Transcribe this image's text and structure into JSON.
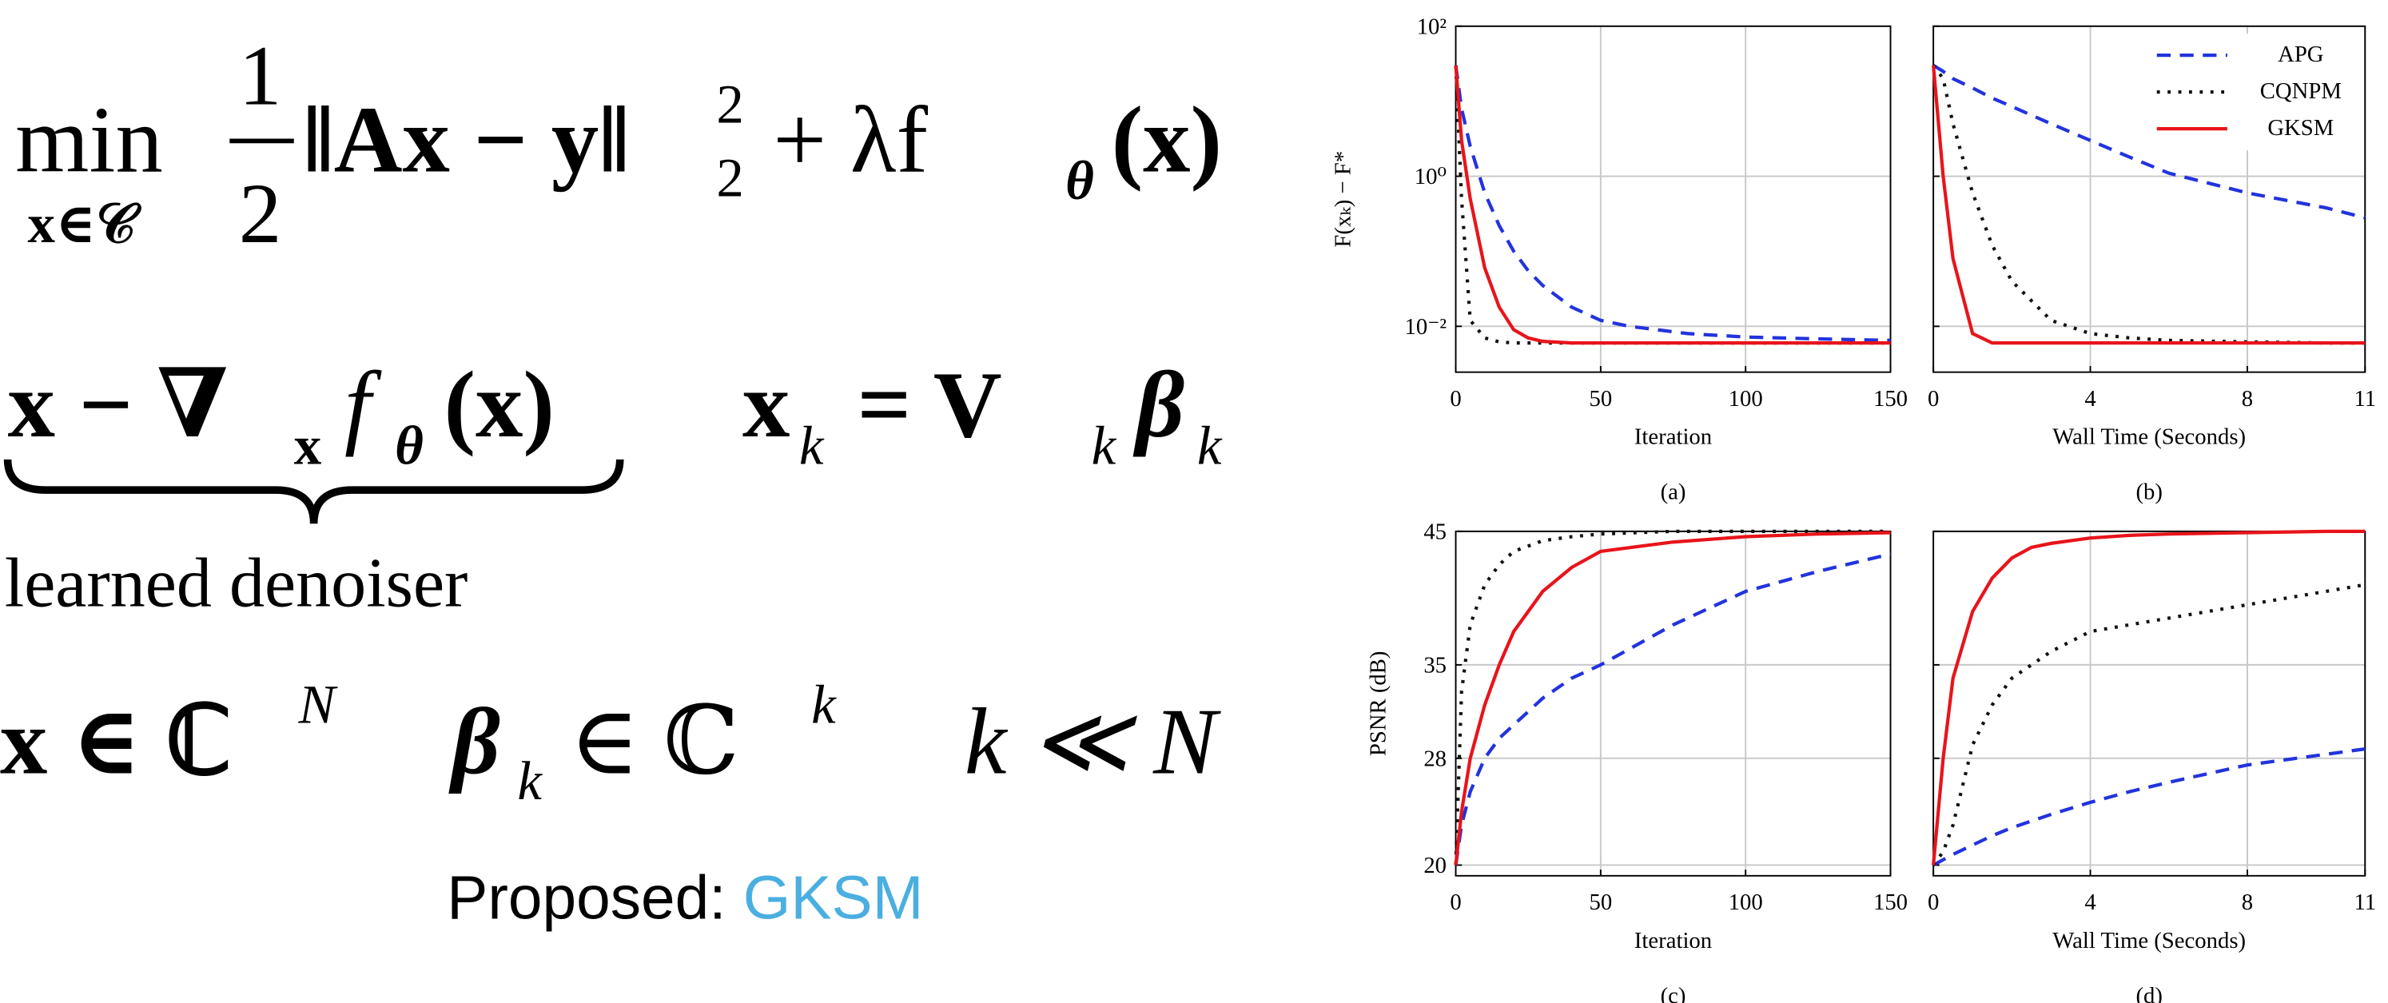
{
  "equations": {
    "objective": [
      "min",
      "x∈𝒞",
      "1",
      "2",
      "‖Ax − y‖",
      "2",
      "2",
      "+ λf",
      "θ",
      "(x)"
    ],
    "denoiser": [
      "x − ∇",
      "x",
      "f",
      "θ",
      "(x)"
    ],
    "denoiser_note": "learned denoiser",
    "subspace": [
      "x",
      "k",
      "= V",
      "k",
      "β",
      "k"
    ],
    "dims": [
      "x ∈ ℂ",
      "N",
      "β",
      "k",
      "∈ ℂ",
      "k",
      "k ≪ N"
    ],
    "proposed": "Proposed: ",
    "method": "GKSM"
  },
  "chart_data": [
    {
      "type": "line",
      "caption": "(a)",
      "xlabel": "Iteration",
      "ylabel": "F(xₖ) − F*",
      "x": [
        0,
        2,
        5,
        10,
        15,
        20,
        25,
        30,
        40,
        50,
        60,
        80,
        100,
        125,
        150
      ],
      "series": [
        {
          "name": "APG",
          "color": "#2233dd",
          "dash": "dashed",
          "values": [
            30,
            8,
            2.5,
            0.6,
            0.22,
            0.1,
            0.055,
            0.035,
            0.018,
            0.012,
            0.01,
            0.008,
            0.0072,
            0.0068,
            0.0065
          ]
        },
        {
          "name": "CQNPM",
          "color": "#111111",
          "dash": "dotted",
          "values": [
            30,
            0.5,
            0.012,
            0.007,
            0.0062,
            0.006,
            0.006,
            0.006,
            0.006,
            0.006,
            0.006,
            0.006,
            0.006,
            0.006,
            0.006
          ]
        },
        {
          "name": "GKSM",
          "color": "#e8141b",
          "dash": "solid",
          "values": [
            30,
            3,
            0.5,
            0.06,
            0.018,
            0.009,
            0.007,
            0.0063,
            0.006,
            0.006,
            0.006,
            0.006,
            0.006,
            0.006,
            0.006
          ]
        }
      ],
      "xlim": [
        0,
        150
      ],
      "xticks": [
        0,
        50,
        100,
        150
      ],
      "ylog": true,
      "ylim": [
        0.00245,
        100
      ],
      "yticks": [
        {
          "value": 100,
          "label": "10²"
        },
        {
          "value": 1,
          "label": "10⁰"
        },
        {
          "value": 0.01,
          "label": "10⁻²"
        }
      ],
      "show_ytick_labels": true,
      "grid": true,
      "legend": false
    },
    {
      "type": "line",
      "caption": "(b)",
      "xlabel": "Wall Time (Seconds)",
      "x": [
        0,
        0.25,
        0.5,
        1,
        1.5,
        2,
        3,
        4,
        5,
        6,
        8,
        10,
        11
      ],
      "series": [
        {
          "name": "APG",
          "color": "#2233dd",
          "dash": "dashed",
          "values": [
            30,
            25,
            20,
            15,
            11,
            8.5,
            5,
            3,
            1.8,
            1.1,
            0.6,
            0.38,
            0.28
          ]
        },
        {
          "name": "CQNPM",
          "color": "#111111",
          "dash": "dotted",
          "values": [
            30,
            20,
            5,
            0.6,
            0.12,
            0.04,
            0.012,
            0.008,
            0.007,
            0.0065,
            0.0062,
            0.006,
            0.006
          ]
        },
        {
          "name": "GKSM",
          "color": "#e8141b",
          "dash": "solid",
          "values": [
            30,
            1,
            0.08,
            0.008,
            0.006,
            0.006,
            0.006,
            0.006,
            0.006,
            0.006,
            0.006,
            0.006,
            0.006
          ]
        }
      ],
      "xlim": [
        0,
        11
      ],
      "xticks": [
        0,
        4,
        8,
        11
      ],
      "ylog": true,
      "ylim": [
        0.00245,
        100
      ],
      "yticks": [
        100,
        1,
        0.01
      ],
      "show_ytick_labels": false,
      "grid": true,
      "legend": "upper right"
    },
    {
      "type": "line",
      "caption": "(c)",
      "xlabel": "Iteration",
      "ylabel": "PSNR (dB)",
      "x": [
        0,
        2,
        5,
        10,
        15,
        20,
        30,
        40,
        50,
        75,
        100,
        125,
        150
      ],
      "series": [
        {
          "name": "APG",
          "color": "#2233dd",
          "dash": "dashed",
          "values": [
            20,
            23,
            25.5,
            28,
            29.5,
            30.5,
            32.5,
            34,
            35,
            38,
            40.5,
            42,
            43.3
          ]
        },
        {
          "name": "CQNPM",
          "color": "#111111",
          "dash": "dotted",
          "values": [
            20,
            33,
            38,
            41,
            42.5,
            43.5,
            44.3,
            44.6,
            44.8,
            45,
            45,
            45,
            45
          ]
        },
        {
          "name": "GKSM",
          "color": "#e8141b",
          "dash": "solid",
          "values": [
            20,
            24,
            28,
            32,
            35,
            37.5,
            40.5,
            42.3,
            43.5,
            44.2,
            44.6,
            44.8,
            44.9
          ]
        }
      ],
      "xlim": [
        0,
        150
      ],
      "xticks": [
        0,
        50,
        100,
        150
      ],
      "ylog": false,
      "ylim": [
        19.2,
        45
      ],
      "yticks": [
        20,
        28,
        35,
        45
      ],
      "show_ytick_labels": true,
      "grid": true,
      "legend": false
    },
    {
      "type": "line",
      "caption": "(d)",
      "xlabel": "Wall Time (Seconds)",
      "x": [
        0,
        0.25,
        0.5,
        1,
        1.5,
        2,
        2.5,
        3,
        4,
        5,
        6,
        8,
        10,
        11
      ],
      "series": [
        {
          "name": "APG",
          "color": "#2233dd",
          "dash": "dashed",
          "values": [
            20,
            20.4,
            20.8,
            21.5,
            22.2,
            22.8,
            23.3,
            23.8,
            24.7,
            25.5,
            26.2,
            27.5,
            28.3,
            28.7
          ]
        },
        {
          "name": "CQNPM",
          "color": "#111111",
          "dash": "dotted",
          "values": [
            20,
            21,
            23,
            29,
            32,
            34,
            35,
            36,
            37.5,
            38,
            38.5,
            39.5,
            40.5,
            41
          ]
        },
        {
          "name": "GKSM",
          "color": "#e8141b",
          "dash": "solid",
          "values": [
            20,
            28,
            34,
            39,
            41.5,
            43,
            43.8,
            44.1,
            44.5,
            44.7,
            44.8,
            44.9,
            45,
            45
          ]
        }
      ],
      "xlim": [
        0,
        11
      ],
      "xticks": [
        0,
        4,
        8,
        11
      ],
      "ylog": false,
      "ylim": [
        19.2,
        45
      ],
      "yticks": [
        20,
        28,
        35,
        45
      ],
      "show_ytick_labels": false,
      "grid": true,
      "legend": false
    }
  ]
}
